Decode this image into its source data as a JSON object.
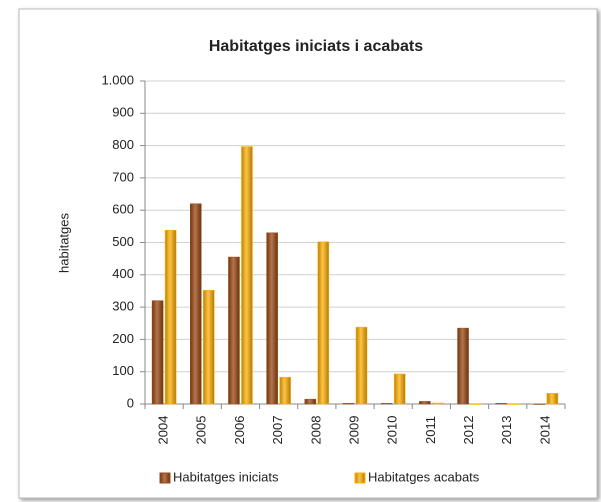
{
  "chart_data": {
    "type": "bar",
    "title": "Habitatges iniciats i acabats",
    "y_label": "habitatges",
    "categories": [
      "2004",
      "2005",
      "2006",
      "2007",
      "2008",
      "2009",
      "2010",
      "2011",
      "2012",
      "2013",
      "2014"
    ],
    "series": [
      {
        "name": "Habitatges iniciats",
        "color": "#9a4812",
        "values": [
          320,
          620,
          455,
          530,
          15,
          2,
          2,
          8,
          235,
          2,
          0
        ]
      },
      {
        "name": "Habitatges acabats",
        "color": "#ffb000",
        "values": [
          538,
          352,
          797,
          83,
          502,
          238,
          93,
          3,
          0,
          0,
          33
        ]
      }
    ],
    "ylim": [
      0,
      1000
    ],
    "yticks": [
      0,
      100,
      200,
      300,
      400,
      500,
      600,
      700,
      800,
      900,
      {
        "value": 1000,
        "label": "1.000"
      }
    ],
    "grid": true,
    "legend": "bottom"
  }
}
